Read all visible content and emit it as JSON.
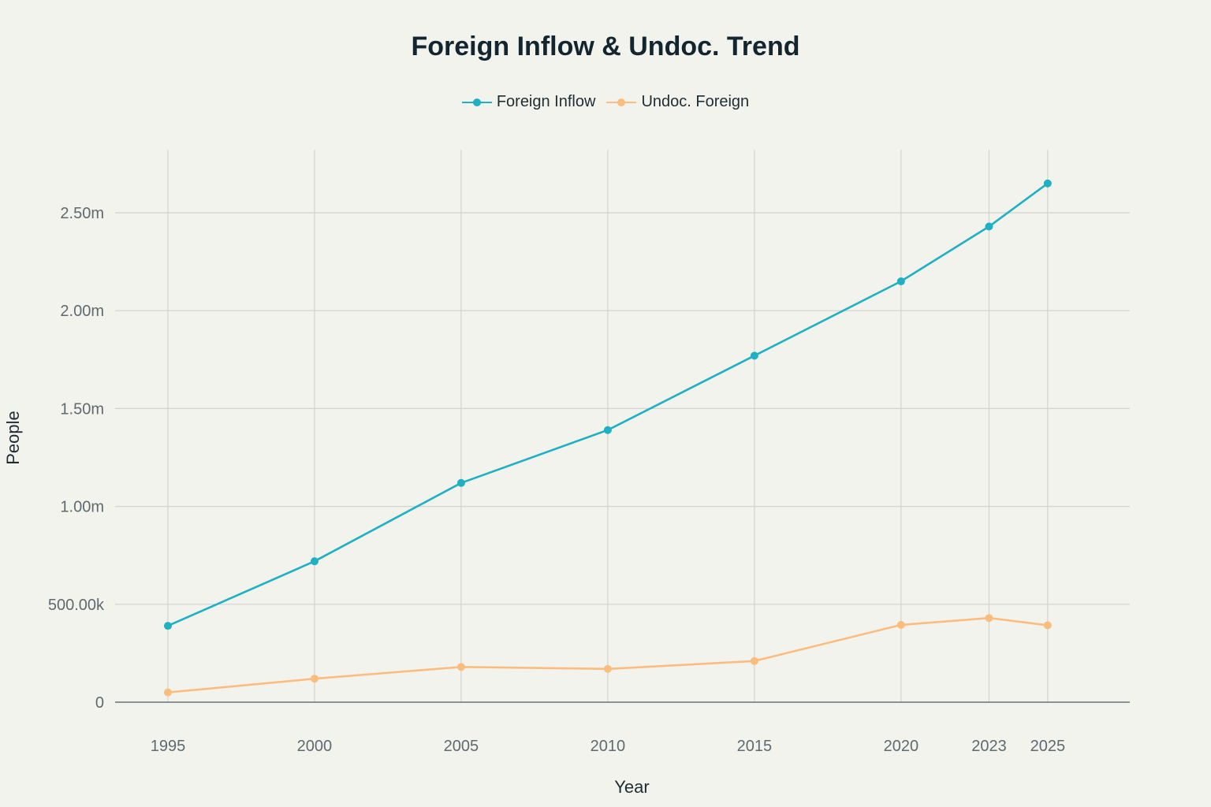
{
  "chart_data": {
    "type": "line",
    "title": "Foreign Inflow & Undoc. Trend",
    "xlabel": "Year",
    "ylabel": "People",
    "x": [
      1995,
      2000,
      2005,
      2010,
      2015,
      2020,
      2023,
      2025
    ],
    "x_tick_labels": [
      "1995",
      "2000",
      "2005",
      "2010",
      "2015",
      "2020",
      "2023",
      "2025"
    ],
    "xlim": [
      1993.2,
      2027.8
    ],
    "ylim": [
      0,
      2800000
    ],
    "y_ticks": [
      0,
      500000,
      1000000,
      1500000,
      2000000,
      2500000
    ],
    "y_tick_labels": [
      "0",
      "500.00k",
      "1.00m",
      "1.50m",
      "2.00m",
      "2.50m"
    ],
    "grid": true,
    "legend_position": "top-center",
    "series": [
      {
        "name": "Foreign Inflow",
        "color": "#1fb0c4",
        "values": [
          390000,
          720000,
          1120000,
          1390000,
          1770000,
          2150000,
          2430000,
          2650000
        ]
      },
      {
        "name": "Undoc. Foreign",
        "color": "#fbbd7e",
        "values": [
          50000,
          120000,
          180000,
          170000,
          210000,
          395000,
          430000,
          393000
        ]
      }
    ]
  }
}
